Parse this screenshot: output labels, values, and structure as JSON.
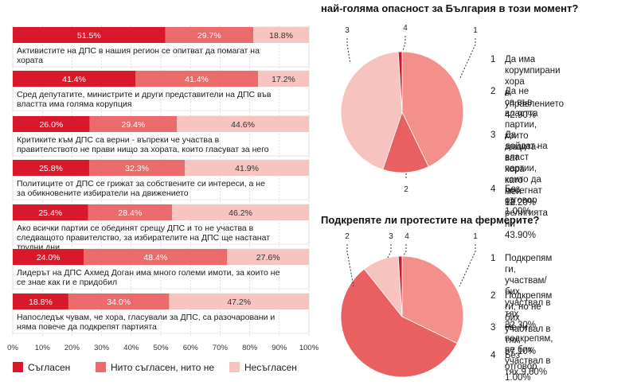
{
  "colors": {
    "agree": "#d9182a",
    "neutral": "#eb6a6a",
    "disagree": "#f7c4c0",
    "pie_cat1": "#f4908b",
    "pie_cat2": "#e8605f",
    "pie_cat3": "#f7c3bf",
    "pie_cat4": "#c81c2c"
  },
  "chart_data": [
    {
      "type": "bar",
      "orientation": "horizontal",
      "stacked": true,
      "categories": [
        "Активистите на ДПС в нашия регион се опитват да помагат на хората",
        "Сред депутатите, министрите и други представители на ДПС във властта има голяма корупция",
        "Критиките към ДПС са верни - въпреки че участва в правителството не прави нищо за хората, които гласуват за него",
        "Политиците от ДПС се грижат за собствените си интереси, а не за обикновените избиратели на движението",
        "Ако всички партии се обединят срещу ДПС и то не участва в следващото правителство, за избирателите на ДПС ще настанат трудни дни",
        "Лидерът на ДПС Ахмед Доган има много големи имоти, за които не се знае как ги е придобил",
        "Напоследък чувам, че хора, гласували за ДПС, са разочаровани и няма повече да подкрепят партията"
      ],
      "series": [
        {
          "name": "Съгласен",
          "values": [
            51.5,
            41.4,
            26.0,
            25.8,
            25.4,
            24.0,
            18.8
          ],
          "labels": [
            "51.5%",
            "41.4%",
            "26.0%",
            "25.8%",
            "25.4%",
            "24.0%",
            "18.8%"
          ]
        },
        {
          "name": "Нито съгласен, нито не",
          "values": [
            29.7,
            41.4,
            29.4,
            32.3,
            28.4,
            48.4,
            34.0
          ],
          "labels": [
            "29.7%",
            "41.4%",
            "29.4%",
            "32.3%",
            "28.4%",
            "48.4%",
            "34.0%"
          ]
        },
        {
          "name": "Несъгласен",
          "values": [
            18.8,
            17.2,
            44.6,
            41.9,
            46.2,
            27.6,
            47.2
          ],
          "labels": [
            "18.8%",
            "17.2%",
            "44.6%",
            "41.9%",
            "46.2%",
            "27.6%",
            "47.2%"
          ]
        }
      ],
      "xlim": [
        0,
        100
      ],
      "xticks": [
        "0%",
        "10%",
        "20%",
        "30%",
        "40%",
        "50%",
        "60%",
        "70%",
        "80%",
        "90%",
        "100%"
      ]
    },
    {
      "type": "pie",
      "title": "най-голяма опасност за България в този момент?",
      "labels": [
        "1",
        "2",
        "3",
        "4"
      ],
      "values": [
        42.9,
        12.2,
        43.9,
        1.0
      ],
      "legend": [
        {
          "num": "1",
          "lines": [
            "Да има корумпирани хора",
            "в управлението 42.90%"
          ]
        },
        {
          "num": "2",
          "lines": [
            "Да не са във властта",
            "партии, които защита-",
            "ват хора като мен 12.20%"
          ]
        },
        {
          "num": "3",
          "lines": [
            "Да дойдат на власт",
            "партии, които да",
            "посегнат на религията",
            "ни 43.90%"
          ]
        },
        {
          "num": "4",
          "lines": [
            "Без отговор 1.00%"
          ]
        }
      ]
    },
    {
      "type": "pie",
      "title": "Подкрепяте ли протестите на фермерите?",
      "labels": [
        "1",
        "2",
        "3",
        "4"
      ],
      "values": [
        32.3,
        57.1,
        9.6,
        1.0
      ],
      "legend": [
        {
          "num": "1",
          "lines": [
            "Подкрепям ги,",
            "участвам/бих участвал в",
            "тях 32.30%"
          ]
        },
        {
          "num": "2",
          "lines": [
            "Подкрепям ги, но не бих",
            "участвал в тях 57.10%"
          ]
        },
        {
          "num": "3",
          "lines": [
            "Не ги подкрепям, не бих",
            "участвал в тях 9.60%"
          ]
        },
        {
          "num": "4",
          "lines": [
            "Без отговор 1.00%"
          ]
        }
      ]
    }
  ]
}
